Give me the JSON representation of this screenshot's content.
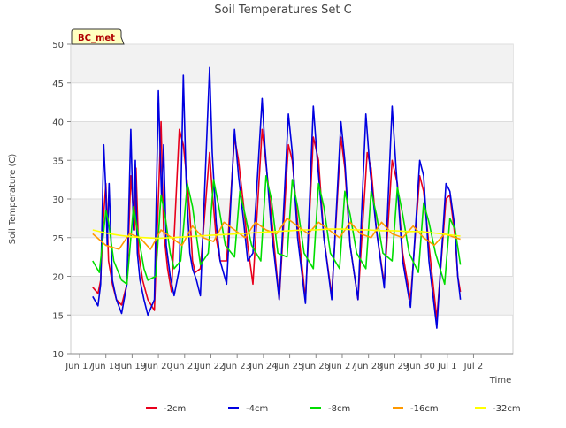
{
  "chart_data": {
    "type": "line",
    "title": "Soil Temperatures Set C",
    "xlabel": "Time",
    "ylabel": "Soil Temperature (C)",
    "station_label": "BC_met",
    "xlim": [
      0,
      16.5
    ],
    "ylim": [
      10,
      50
    ],
    "yticks": [
      10,
      15,
      20,
      25,
      30,
      35,
      40,
      45,
      50
    ],
    "xticks": [
      {
        "pos": 0,
        "label": "Jun 17"
      },
      {
        "pos": 1,
        "label": "Jun 18"
      },
      {
        "pos": 2,
        "label": "Jun 19"
      },
      {
        "pos": 3,
        "label": "Jun 20"
      },
      {
        "pos": 4,
        "label": "Jun 21"
      },
      {
        "pos": 5,
        "label": "Jun 22"
      },
      {
        "pos": 6,
        "label": "Jun 23"
      },
      {
        "pos": 7,
        "label": "Jun 24"
      },
      {
        "pos": 8,
        "label": "Jun 25"
      },
      {
        "pos": 9,
        "label": "Jun 26"
      },
      {
        "pos": 10,
        "label": "Jun 27"
      },
      {
        "pos": 11,
        "label": "Jun 28"
      },
      {
        "pos": 12,
        "label": "Jun 29"
      },
      {
        "pos": 13,
        "label": "Jun 30"
      },
      {
        "pos": 14,
        "label": "Jul 1"
      },
      {
        "pos": 15,
        "label": "Jul 2"
      }
    ],
    "grid": true,
    "legend_position": "bottom",
    "series": [
      {
        "name": "-2cm",
        "color": "#e8001c",
        "x": [
          0.5,
          0.7,
          0.8,
          0.9,
          1.0,
          1.1,
          1.25,
          1.4,
          1.6,
          1.8,
          1.95,
          2.1,
          2.15,
          2.25,
          2.4,
          2.6,
          2.85,
          3.0,
          3.1,
          3.2,
          3.35,
          3.5,
          3.8,
          3.95,
          4.1,
          4.2,
          4.3,
          4.4,
          4.6,
          4.95,
          5.05,
          5.2,
          5.35,
          5.6,
          5.9,
          6.05,
          6.25,
          6.4,
          6.6,
          6.95,
          7.05,
          7.3,
          7.6,
          7.95,
          8.1,
          8.3,
          8.6,
          8.9,
          9.1,
          9.3,
          9.6,
          9.95,
          10.1,
          10.3,
          10.6,
          10.95,
          11.1,
          11.3,
          11.6,
          11.9,
          12.1,
          12.3,
          12.6,
          12.95,
          13.1,
          13.3,
          13.6,
          13.95,
          14.1,
          14.3,
          14.4,
          14.5
        ],
        "y": [
          18.6,
          17.8,
          19.5,
          27.0,
          32.0,
          22.0,
          19.0,
          17.0,
          16.3,
          19.0,
          33.0,
          26.0,
          34.0,
          23.0,
          19.5,
          17.0,
          15.6,
          30.0,
          40.0,
          26.0,
          21.0,
          18.0,
          39.0,
          37.0,
          32.0,
          28.0,
          22.0,
          20.5,
          21.0,
          36.0,
          31.0,
          25.0,
          22.0,
          22.0,
          38.0,
          35.0,
          29.0,
          24.0,
          19.0,
          39.0,
          36.0,
          28.0,
          17.0,
          37.0,
          35.0,
          27.0,
          17.0,
          38.0,
          35.0,
          25.0,
          17.5,
          38.0,
          34.0,
          24.0,
          17.0,
          36.0,
          34.0,
          26.0,
          19.0,
          35.0,
          32.0,
          23.0,
          17.0,
          33.0,
          31.0,
          24.0,
          14.5,
          30.0,
          30.5,
          25.0,
          20.0,
          18.0
        ]
      },
      {
        "name": "-4cm",
        "color": "#0000e0",
        "x": [
          0.5,
          0.7,
          0.8,
          0.92,
          1.0,
          1.05,
          1.12,
          1.25,
          1.4,
          1.6,
          1.8,
          1.95,
          2.05,
          2.12,
          2.2,
          2.3,
          2.45,
          2.6,
          2.85,
          3.0,
          3.12,
          3.2,
          3.3,
          3.45,
          3.6,
          3.8,
          3.95,
          4.05,
          4.12,
          4.2,
          4.3,
          4.45,
          4.6,
          4.95,
          5.05,
          5.2,
          5.35,
          5.6,
          5.9,
          6.05,
          6.25,
          6.4,
          6.6,
          6.95,
          7.05,
          7.3,
          7.6,
          7.95,
          8.1,
          8.3,
          8.6,
          8.9,
          9.05,
          9.3,
          9.6,
          9.95,
          10.1,
          10.3,
          10.6,
          10.9,
          11.05,
          11.3,
          11.6,
          11.9,
          12.05,
          12.3,
          12.6,
          12.95,
          13.1,
          13.3,
          13.6,
          13.95,
          14.1,
          14.3,
          14.4,
          14.5
        ],
        "y": [
          17.4,
          16.2,
          19.0,
          37.0,
          31.0,
          24.0,
          32.0,
          19.5,
          17.0,
          15.2,
          19.0,
          39.0,
          26.0,
          35.0,
          23.0,
          19.5,
          17.0,
          15.0,
          17.0,
          44.0,
          30.0,
          37.0,
          24.0,
          20.0,
          17.5,
          21.0,
          46.0,
          33.0,
          28.0,
          23.0,
          21.0,
          19.5,
          17.5,
          47.0,
          36.0,
          27.0,
          22.0,
          19.0,
          39.0,
          33.0,
          27.0,
          22.0,
          23.0,
          43.0,
          37.0,
          26.0,
          17.0,
          41.0,
          36.0,
          25.0,
          16.5,
          42.0,
          35.0,
          25.0,
          17.0,
          40.0,
          35.0,
          24.0,
          17.0,
          41.0,
          34.0,
          26.0,
          18.5,
          42.0,
          34.0,
          22.0,
          16.0,
          35.0,
          33.0,
          22.0,
          13.3,
          32.0,
          31.0,
          26.0,
          20.0,
          17.0
        ]
      },
      {
        "name": "-8cm",
        "color": "#00dd00",
        "x": [
          0.5,
          0.75,
          1.0,
          1.1,
          1.3,
          1.6,
          1.8,
          2.05,
          2.2,
          2.45,
          2.6,
          2.9,
          3.1,
          3.25,
          3.45,
          3.6,
          3.85,
          4.1,
          4.3,
          4.5,
          4.6,
          4.9,
          5.1,
          5.3,
          5.55,
          5.9,
          6.1,
          6.3,
          6.55,
          6.9,
          7.1,
          7.3,
          7.55,
          7.9,
          8.1,
          8.3,
          8.55,
          8.9,
          9.1,
          9.3,
          9.55,
          9.9,
          10.1,
          10.3,
          10.55,
          10.9,
          11.1,
          11.3,
          11.55,
          11.9,
          12.1,
          12.3,
          12.55,
          12.9,
          13.1,
          13.3,
          13.55,
          13.9,
          14.1,
          14.3,
          14.5
        ],
        "y": [
          22.0,
          20.5,
          28.5,
          27.0,
          22.0,
          19.5,
          19.0,
          29.0,
          26.0,
          21.0,
          19.5,
          20.0,
          30.5,
          28.0,
          23.0,
          21.0,
          22.0,
          32.0,
          29.0,
          24.0,
          21.5,
          23.0,
          32.5,
          29.0,
          24.0,
          22.5,
          31.0,
          28.0,
          24.0,
          22.0,
          33.0,
          30.0,
          23.0,
          22.5,
          32.5,
          29.0,
          23.0,
          21.0,
          32.0,
          29.0,
          23.0,
          21.0,
          31.0,
          28.0,
          23.0,
          21.0,
          31.0,
          28.0,
          23.0,
          22.0,
          31.5,
          28.0,
          23.0,
          20.5,
          29.5,
          27.0,
          23.0,
          19.0,
          27.5,
          26.0,
          21.5
        ]
      },
      {
        "name": "-16cm",
        "color": "#ff9900",
        "x": [
          0.5,
          1.0,
          1.5,
          1.9,
          2.3,
          2.7,
          3.1,
          3.5,
          3.9,
          4.3,
          4.7,
          5.1,
          5.5,
          5.9,
          6.3,
          6.7,
          7.1,
          7.5,
          7.9,
          8.3,
          8.7,
          9.1,
          9.5,
          9.9,
          10.3,
          10.7,
          11.1,
          11.5,
          11.9,
          12.3,
          12.7,
          13.1,
          13.5,
          13.9,
          14.3,
          14.5
        ],
        "y": [
          25.5,
          24.0,
          23.5,
          25.5,
          25.0,
          23.5,
          26.0,
          25.0,
          24.0,
          26.5,
          25.0,
          24.5,
          27.0,
          26.0,
          25.0,
          27.0,
          26.0,
          25.5,
          27.5,
          26.5,
          25.5,
          27.0,
          26.0,
          25.0,
          27.0,
          25.5,
          25.0,
          27.0,
          25.5,
          25.0,
          26.5,
          25.0,
          24.0,
          25.5,
          25.0,
          24.8
        ]
      },
      {
        "name": "-32cm",
        "color": "#ffff00",
        "x": [
          0.5,
          1.0,
          1.5,
          2.0,
          2.5,
          3.0,
          3.5,
          4.0,
          4.5,
          5.0,
          5.5,
          6.0,
          6.5,
          7.0,
          7.5,
          8.0,
          8.5,
          9.0,
          9.5,
          10.0,
          10.5,
          11.0,
          11.5,
          12.0,
          12.5,
          13.0,
          13.5,
          14.0,
          14.5
        ],
        "y": [
          26.0,
          25.6,
          25.3,
          25.1,
          25.0,
          24.9,
          25.0,
          25.1,
          25.2,
          25.3,
          25.4,
          25.5,
          25.6,
          25.7,
          25.8,
          25.9,
          26.0,
          26.0,
          26.1,
          26.1,
          26.0,
          26.0,
          25.9,
          25.9,
          25.8,
          25.8,
          25.6,
          25.4,
          25.2
        ]
      }
    ]
  }
}
